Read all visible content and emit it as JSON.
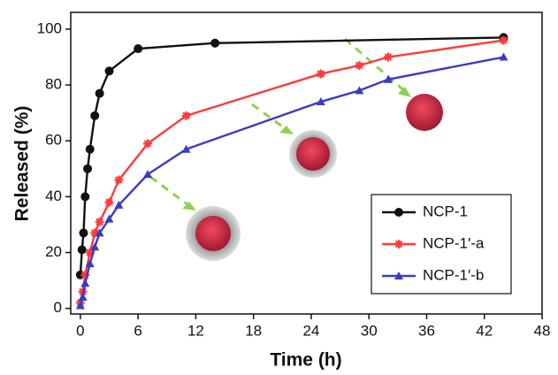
{
  "chart_data": {
    "type": "line",
    "xlabel": "Time (h)",
    "ylabel": "Released (%)",
    "xlim": [
      -1,
      48
    ],
    "ylim": [
      -2,
      106
    ],
    "xticks": [
      0,
      6,
      12,
      18,
      24,
      30,
      36,
      42,
      48
    ],
    "yticks": [
      0,
      20,
      40,
      60,
      80,
      100
    ],
    "legend": "lower right",
    "series": [
      {
        "name": "NCP-1",
        "color": "#111111",
        "marker": "circle",
        "x": [
          0,
          0.17,
          0.33,
          0.5,
          0.75,
          1,
          1.5,
          2,
          3,
          6,
          14,
          44
        ],
        "values": [
          12,
          21,
          27,
          40,
          50,
          57,
          69,
          77,
          85,
          93,
          95,
          97
        ]
      },
      {
        "name": "NCP-1′-a",
        "color": "#ff3b3b",
        "marker": "plus",
        "x": [
          0,
          0.25,
          0.5,
          1,
          1.5,
          2,
          3,
          4,
          7,
          11,
          25,
          29,
          32,
          44
        ],
        "values": [
          2,
          6,
          12,
          20,
          27,
          31,
          38,
          46,
          59,
          69,
          84,
          87,
          90,
          96
        ]
      },
      {
        "name": "NCP-1′-b",
        "color": "#3a3ac8",
        "marker": "triangle",
        "x": [
          0,
          0.25,
          0.5,
          1,
          1.5,
          2,
          3,
          4,
          7,
          11,
          25,
          29,
          32,
          44
        ],
        "values": [
          1,
          4,
          9,
          16,
          22,
          27,
          32,
          37,
          48,
          57,
          74,
          78,
          82,
          90
        ]
      }
    ]
  }
}
